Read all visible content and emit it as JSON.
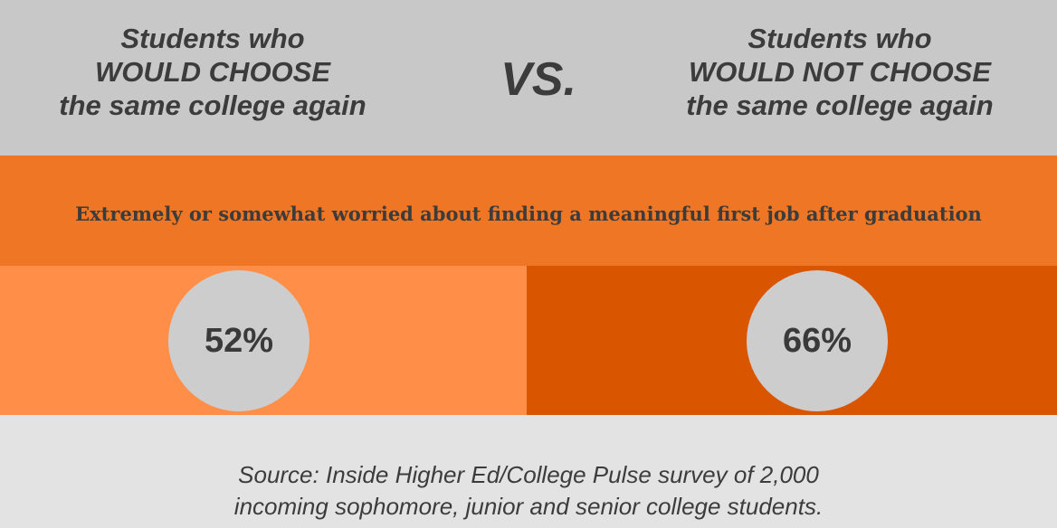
{
  "header": {
    "left_title": [
      "Students who",
      "WOULD CHOOSE",
      "the same college again"
    ],
    "vs_label": "VS.",
    "right_title": [
      "Students who",
      "WOULD NOT CHOOSE",
      "the same college again"
    ]
  },
  "question": "Extremely or somewhat worried about finding a meaningful first job after graduation",
  "results": {
    "would_choose": {
      "value": "52%"
    },
    "would_not_choose": {
      "value": "66%"
    }
  },
  "source": [
    "Source: Inside Higher Ed/College Pulse survey of 2,000",
    "incoming sophomore, junior and senior college students."
  ],
  "colors": {
    "header_bg": "#c8c8c8",
    "question_bg": "#ee7624",
    "left_panel_bg": "#fe8e48",
    "right_panel_bg": "#d95500",
    "bubble_bg": "#cdcdcd",
    "footer_bg": "#e3e3e3",
    "text": "#3c3c3c"
  }
}
